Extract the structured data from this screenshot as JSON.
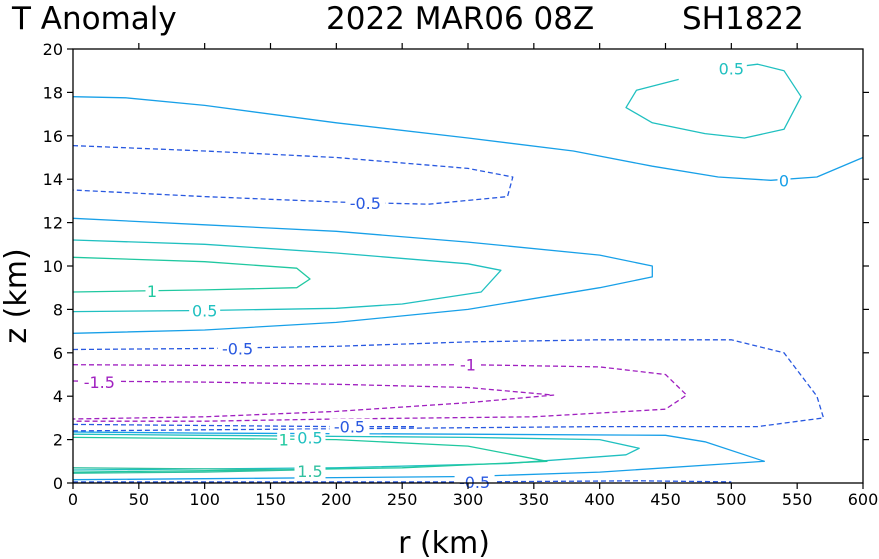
{
  "chart_data": {
    "type": "contour",
    "title": {
      "left": "T Anomaly",
      "date": "2022 MAR06 08Z",
      "storm": "SH1822"
    },
    "xlabel": "r (km)",
    "ylabel": "z (km)",
    "xlim": [
      0,
      600
    ],
    "ylim": [
      0,
      20
    ],
    "xticks": [
      0,
      50,
      100,
      150,
      200,
      250,
      300,
      350,
      400,
      450,
      500,
      550,
      600
    ],
    "yticks": [
      0,
      2,
      4,
      6,
      8,
      10,
      12,
      14,
      16,
      18,
      20
    ],
    "xtick_labels": [
      "0",
      "50",
      "100",
      "150",
      "200",
      "250",
      "300",
      "350",
      "400",
      "450",
      "500",
      "550",
      "600"
    ],
    "ytick_labels": [
      "0",
      "2",
      "4",
      "6",
      "8",
      "10",
      "12",
      "14",
      "16",
      "18",
      "20"
    ],
    "colors": {
      "pos_1_5": "#30c0a0",
      "pos_1": "#20c8a0",
      "pos_0_5": "#20c0c0",
      "zero": "#18a0e8",
      "neg_0_5": "#2858e0",
      "neg_1": "#a020c0",
      "neg_1_5": "#a020c0"
    },
    "contours": [
      {
        "level": 0.5,
        "label": "0.5",
        "color_key": "pos_0_5",
        "dashed": false,
        "points": [
          [
            494,
            19.1
          ],
          [
            520,
            19.3
          ],
          [
            540,
            19.0
          ],
          [
            553,
            17.8
          ],
          [
            540,
            16.3
          ],
          [
            510,
            15.9
          ],
          [
            480,
            16.1
          ],
          [
            440,
            16.6
          ],
          [
            420,
            17.3
          ],
          [
            428,
            18.1
          ],
          [
            460,
            18.6
          ]
        ],
        "label_at": [
          500,
          19.1
        ]
      },
      {
        "level": 0,
        "label": "0",
        "color_key": "zero",
        "dashed": false,
        "points": [
          [
            0,
            17.8
          ],
          [
            40,
            17.75
          ],
          [
            100,
            17.4
          ],
          [
            200,
            16.6
          ],
          [
            300,
            15.9
          ],
          [
            380,
            15.3
          ],
          [
            440,
            14.6
          ],
          [
            490,
            14.1
          ],
          [
            530,
            13.95
          ],
          [
            565,
            14.1
          ],
          [
            600,
            15.0
          ]
        ],
        "label_at": [
          540,
          13.95
        ]
      },
      {
        "level": -0.5,
        "label": "-0.5",
        "color_key": "neg_0_5",
        "dashed": true,
        "points": [
          [
            0,
            15.55
          ],
          [
            100,
            15.3
          ],
          [
            200,
            15.0
          ],
          [
            300,
            14.5
          ],
          [
            334,
            14.1
          ],
          [
            330,
            13.2
          ],
          [
            270,
            12.85
          ],
          [
            200,
            12.95
          ],
          [
            100,
            13.2
          ],
          [
            0,
            13.5
          ]
        ],
        "label_at": [
          222,
          12.9
        ]
      },
      {
        "level": 0,
        "label": "",
        "color_key": "zero",
        "dashed": false,
        "points": [
          [
            0,
            12.2
          ],
          [
            100,
            11.9
          ],
          [
            200,
            11.6
          ],
          [
            300,
            11.1
          ],
          [
            400,
            10.5
          ],
          [
            440,
            10.0
          ],
          [
            440,
            9.5
          ],
          [
            400,
            9.0
          ],
          [
            300,
            8.0
          ],
          [
            200,
            7.4
          ],
          [
            100,
            7.05
          ],
          [
            0,
            6.9
          ]
        ],
        "label_at": [
          120,
          6.95
        ]
      },
      {
        "level": 0.5,
        "label": "0.5",
        "color_key": "pos_0_5",
        "dashed": false,
        "points": [
          [
            0,
            11.2
          ],
          [
            100,
            11.0
          ],
          [
            200,
            10.6
          ],
          [
            300,
            10.1
          ],
          [
            325,
            9.8
          ],
          [
            310,
            8.8
          ],
          [
            250,
            8.25
          ],
          [
            200,
            8.05
          ],
          [
            100,
            7.95
          ],
          [
            0,
            7.9
          ]
        ],
        "label_at": [
          100,
          7.95
        ]
      },
      {
        "level": 1,
        "label": "1",
        "color_key": "pos_1",
        "dashed": false,
        "points": [
          [
            0,
            10.4
          ],
          [
            100,
            10.2
          ],
          [
            170,
            9.9
          ],
          [
            180,
            9.4
          ],
          [
            170,
            9.0
          ],
          [
            100,
            8.9
          ],
          [
            0,
            8.8
          ]
        ],
        "label_at": [
          60,
          8.85
        ]
      },
      {
        "level": -0.5,
        "label": "-0.5",
        "color_key": "neg_0_5",
        "dashed": true,
        "points": [
          [
            0,
            6.15
          ],
          [
            100,
            6.2
          ],
          [
            200,
            6.3
          ],
          [
            300,
            6.5
          ],
          [
            400,
            6.6
          ],
          [
            500,
            6.6
          ],
          [
            540,
            6.0
          ],
          [
            565,
            4.0
          ],
          [
            570,
            3.0
          ],
          [
            520,
            2.6
          ],
          [
            400,
            2.6
          ],
          [
            300,
            2.55
          ],
          [
            200,
            2.5
          ],
          [
            100,
            2.45
          ],
          [
            0,
            2.4
          ]
        ],
        "label_at": [
          125,
          6.2
        ]
      },
      {
        "level": -1,
        "label": "-1",
        "color_key": "neg_1",
        "dashed": true,
        "points": [
          [
            0,
            5.45
          ],
          [
            150,
            5.4
          ],
          [
            300,
            5.45
          ],
          [
            400,
            5.35
          ],
          [
            450,
            5.0
          ],
          [
            466,
            4.05
          ],
          [
            450,
            3.4
          ],
          [
            350,
            3.05
          ],
          [
            200,
            2.95
          ],
          [
            100,
            2.85
          ],
          [
            0,
            2.85
          ]
        ],
        "label_at": [
          300,
          5.45
        ]
      },
      {
        "level": -1.5,
        "label": "-1.5",
        "color_key": "neg_1_5",
        "dashed": true,
        "points": [
          [
            0,
            4.7
          ],
          [
            100,
            4.65
          ],
          [
            200,
            4.55
          ],
          [
            300,
            4.4
          ],
          [
            365,
            4.05
          ],
          [
            300,
            3.7
          ],
          [
            200,
            3.3
          ],
          [
            100,
            3.05
          ],
          [
            0,
            2.95
          ]
        ],
        "label_at": [
          20,
          4.65
        ]
      },
      {
        "level": 0,
        "label": "",
        "color_key": "zero",
        "dashed": false,
        "points": [
          [
            0,
            2.35
          ],
          [
            100,
            2.3
          ],
          [
            300,
            2.25
          ],
          [
            450,
            2.2
          ],
          [
            480,
            1.9
          ],
          [
            525,
            1.0
          ],
          [
            500,
            0.9
          ],
          [
            400,
            0.5
          ],
          [
            300,
            0.3
          ],
          [
            200,
            0.25
          ],
          [
            100,
            0.2
          ],
          [
            0,
            0.15
          ]
        ],
        "label_at": [
          450,
          0.35
        ]
      },
      {
        "level": 0.5,
        "label": "0.5",
        "color_key": "pos_0_5",
        "dashed": false,
        "points": [
          [
            0,
            2.25
          ],
          [
            100,
            2.2
          ],
          [
            300,
            2.1
          ],
          [
            400,
            2.0
          ],
          [
            430,
            1.6
          ],
          [
            420,
            1.3
          ],
          [
            330,
            0.9
          ],
          [
            200,
            0.7
          ],
          [
            100,
            0.65
          ],
          [
            0,
            0.6
          ]
        ],
        "label_at": [
          180,
          2.1
        ]
      },
      {
        "level": 1,
        "label": "1",
        "color_key": "pos_1",
        "dashed": false,
        "points": [
          [
            0,
            2.1
          ],
          [
            100,
            2.05
          ],
          [
            200,
            2.0
          ],
          [
            300,
            1.7
          ],
          [
            360,
            1.0
          ],
          [
            250,
            0.7
          ],
          [
            150,
            0.6
          ],
          [
            0,
            0.5
          ]
        ],
        "label_at": [
          160,
          2.0
        ]
      },
      {
        "level": 1.5,
        "label": "1.5",
        "color_key": "pos_1_5",
        "dashed": false,
        "points": [
          [
            0,
            0.7
          ],
          [
            100,
            0.65
          ],
          [
            170,
            0.6
          ],
          [
            100,
            0.5
          ],
          [
            0,
            0.45
          ]
        ],
        "label_at": [
          180,
          0.55
        ]
      },
      {
        "level": -0.5,
        "label": "-0.5",
        "color_key": "neg_0_5",
        "dashed": true,
        "points": [
          [
            0,
            2.7
          ],
          [
            100,
            2.65
          ],
          [
            200,
            2.6
          ],
          [
            260,
            2.6
          ]
        ],
        "label_at": [
          210,
          2.6
        ]
      },
      {
        "level": -0.5,
        "label": "-0.5",
        "color_key": "neg_0_5",
        "dashed": true,
        "points": [
          [
            0,
            0.05
          ],
          [
            150,
            0.05
          ],
          [
            300,
            0.05
          ],
          [
            430,
            0.1
          ],
          [
            500,
            0.05
          ]
        ],
        "label_at": [
          305,
          0.05
        ]
      }
    ]
  }
}
